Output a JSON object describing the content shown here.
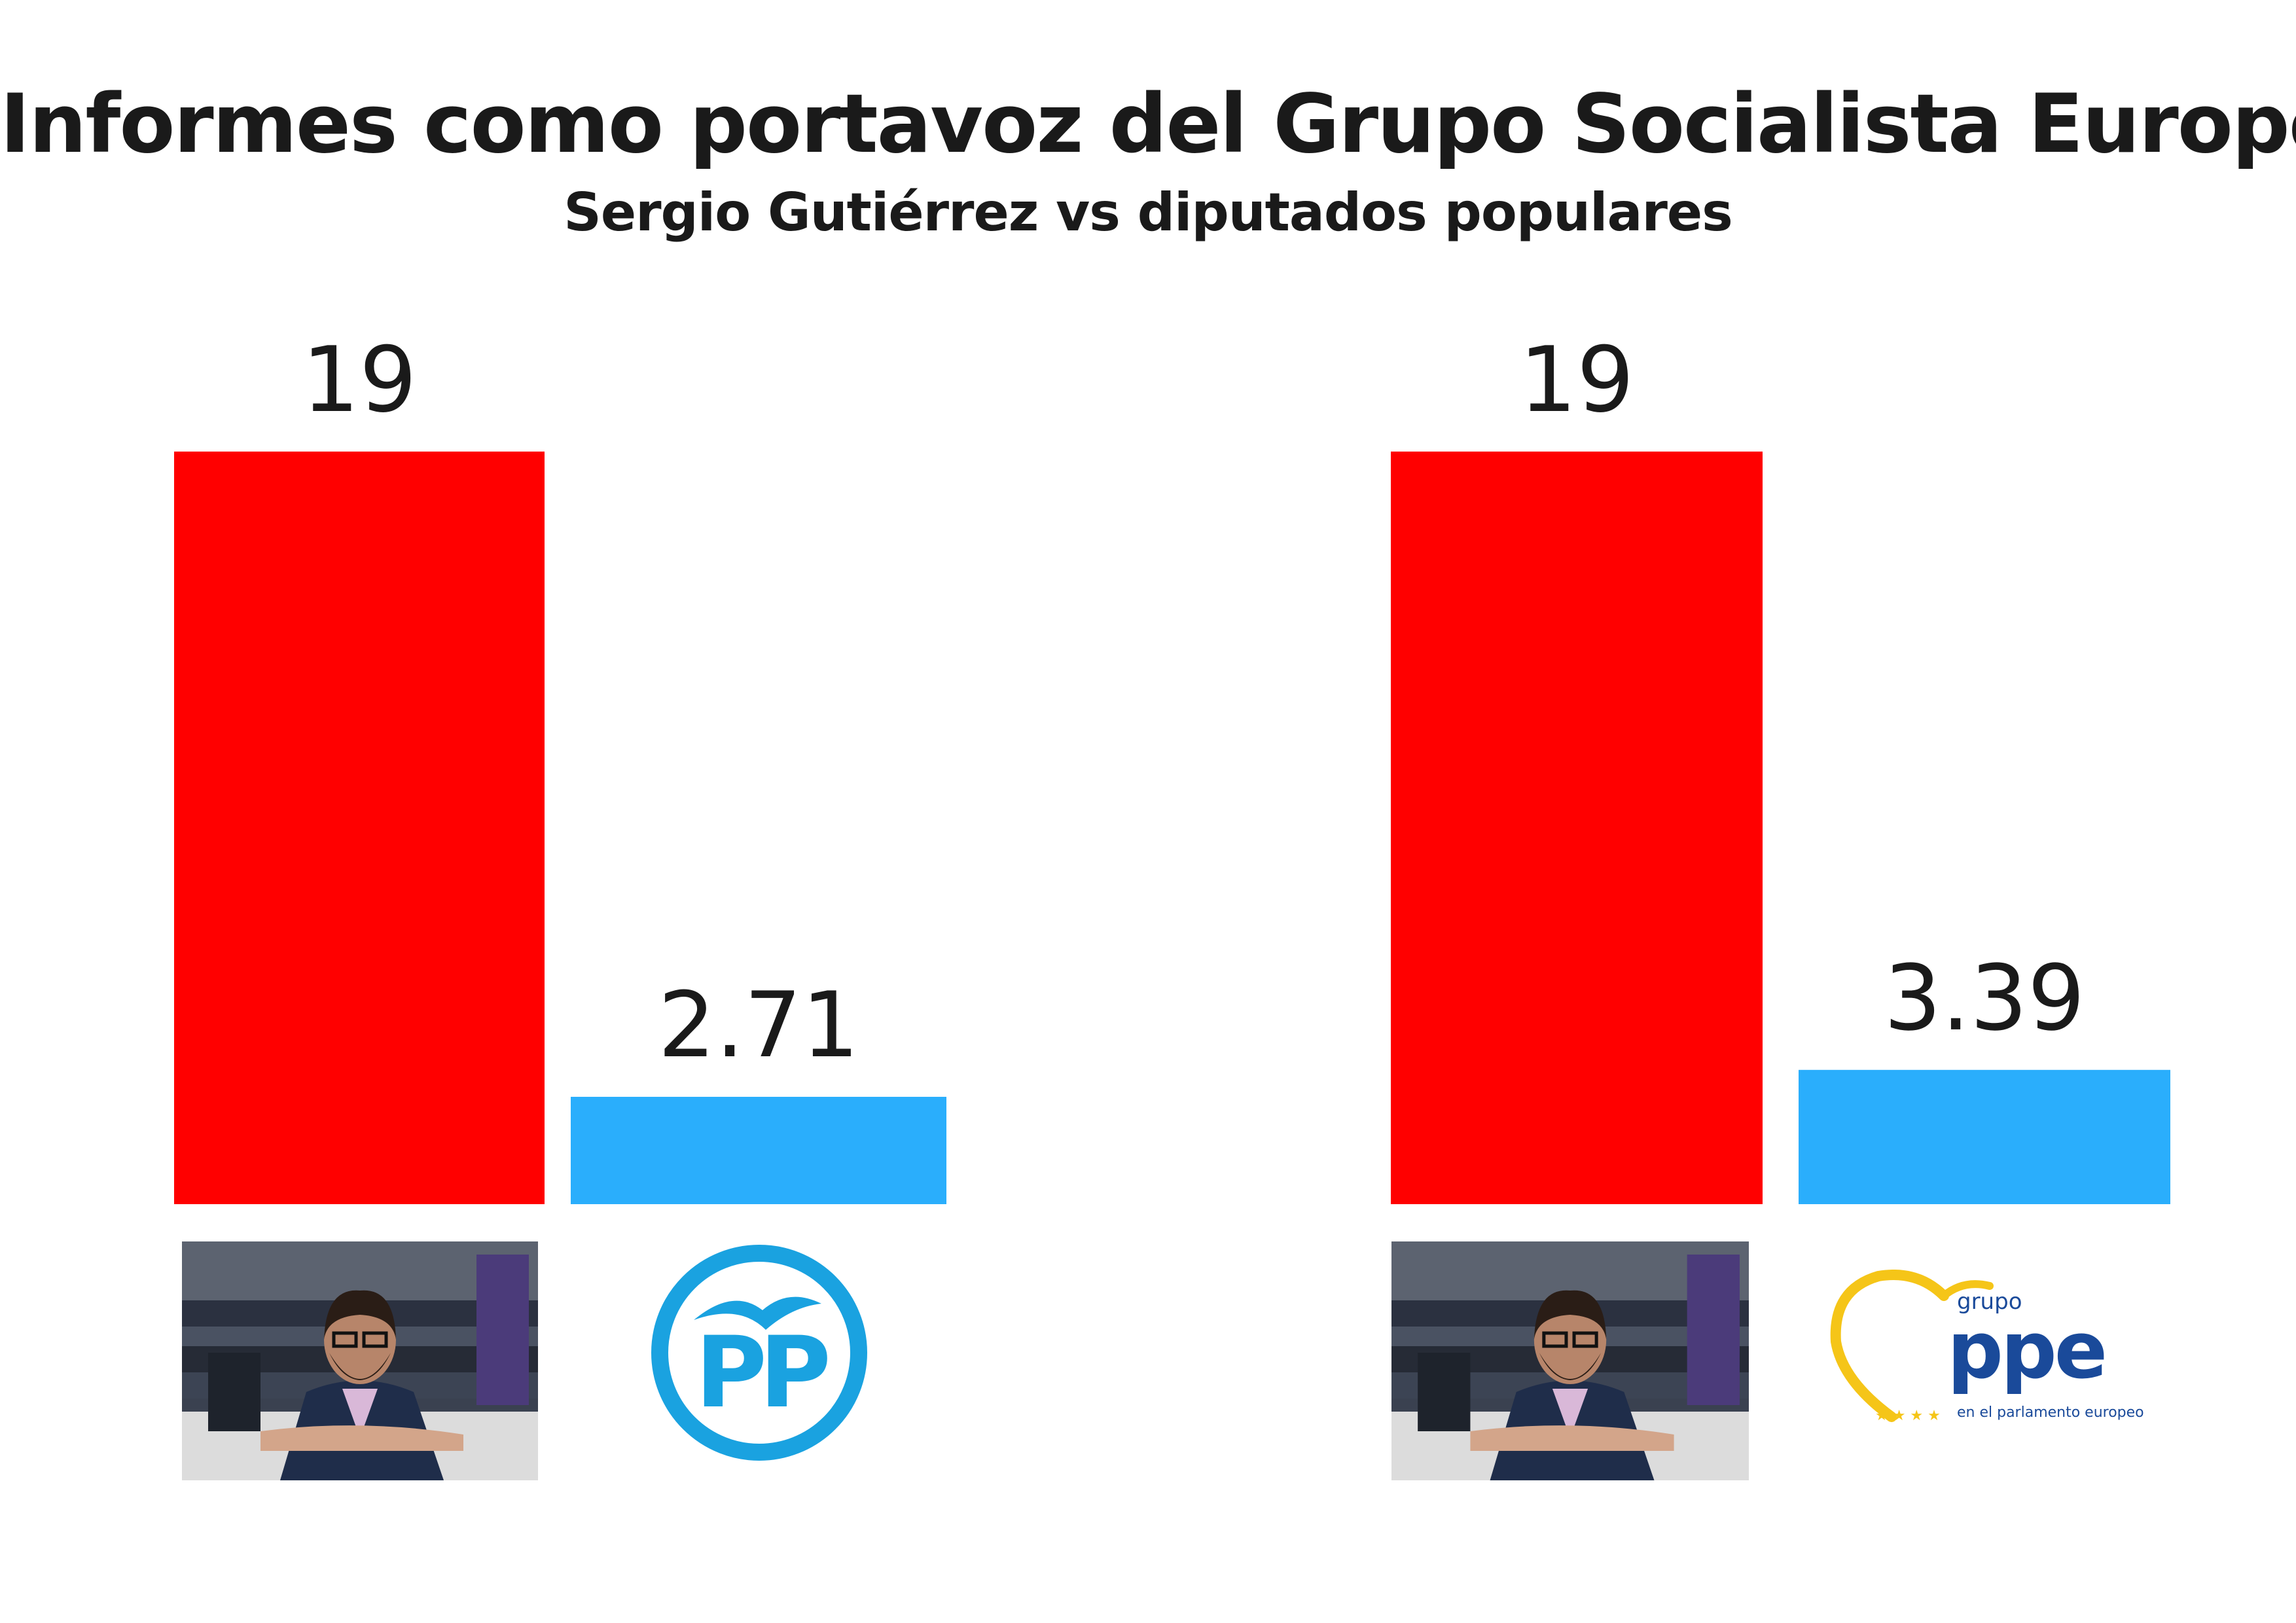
{
  "title": "Informes como portavoz del Grupo Socialista Europeo",
  "subtitle": "Sergio Gutiérrez vs diputados populares",
  "colors": {
    "red": "#ff0000",
    "blue": "#2aaefc",
    "pp_logo": "#1aa2e0",
    "ppe_blue": "#1a4a9a",
    "ppe_yellow": "#f5c518",
    "text": "#1a1a1a"
  },
  "chart_data": [
    {
      "type": "bar",
      "title": "",
      "xlabel": "",
      "ylabel": "",
      "ylim": [
        0,
        19
      ],
      "grid": false,
      "categories": [
        "Sergio Gutiérrez",
        "PP"
      ],
      "values": [
        19,
        2.71
      ],
      "data_labels": [
        "19",
        "2.71"
      ],
      "bar_colors": [
        "#ff0000",
        "#2aaefc"
      ],
      "category_icons": [
        "photo-sergio-gutierrez",
        "pp-logo"
      ]
    },
    {
      "type": "bar",
      "title": "",
      "xlabel": "",
      "ylabel": "",
      "ylim": [
        0,
        19
      ],
      "grid": false,
      "categories": [
        "Sergio Gutiérrez",
        "PPE"
      ],
      "values": [
        19,
        3.39
      ],
      "data_labels": [
        "19",
        "3.39"
      ],
      "bar_colors": [
        "#ff0000",
        "#2aaefc"
      ],
      "category_icons": [
        "photo-sergio-gutierrez",
        "ppe-logo"
      ]
    }
  ],
  "logos": {
    "pp": "PP",
    "ppe_grupo": "grupo",
    "ppe_name": "ppe",
    "ppe_tagline": "en el parlamento europeo"
  }
}
